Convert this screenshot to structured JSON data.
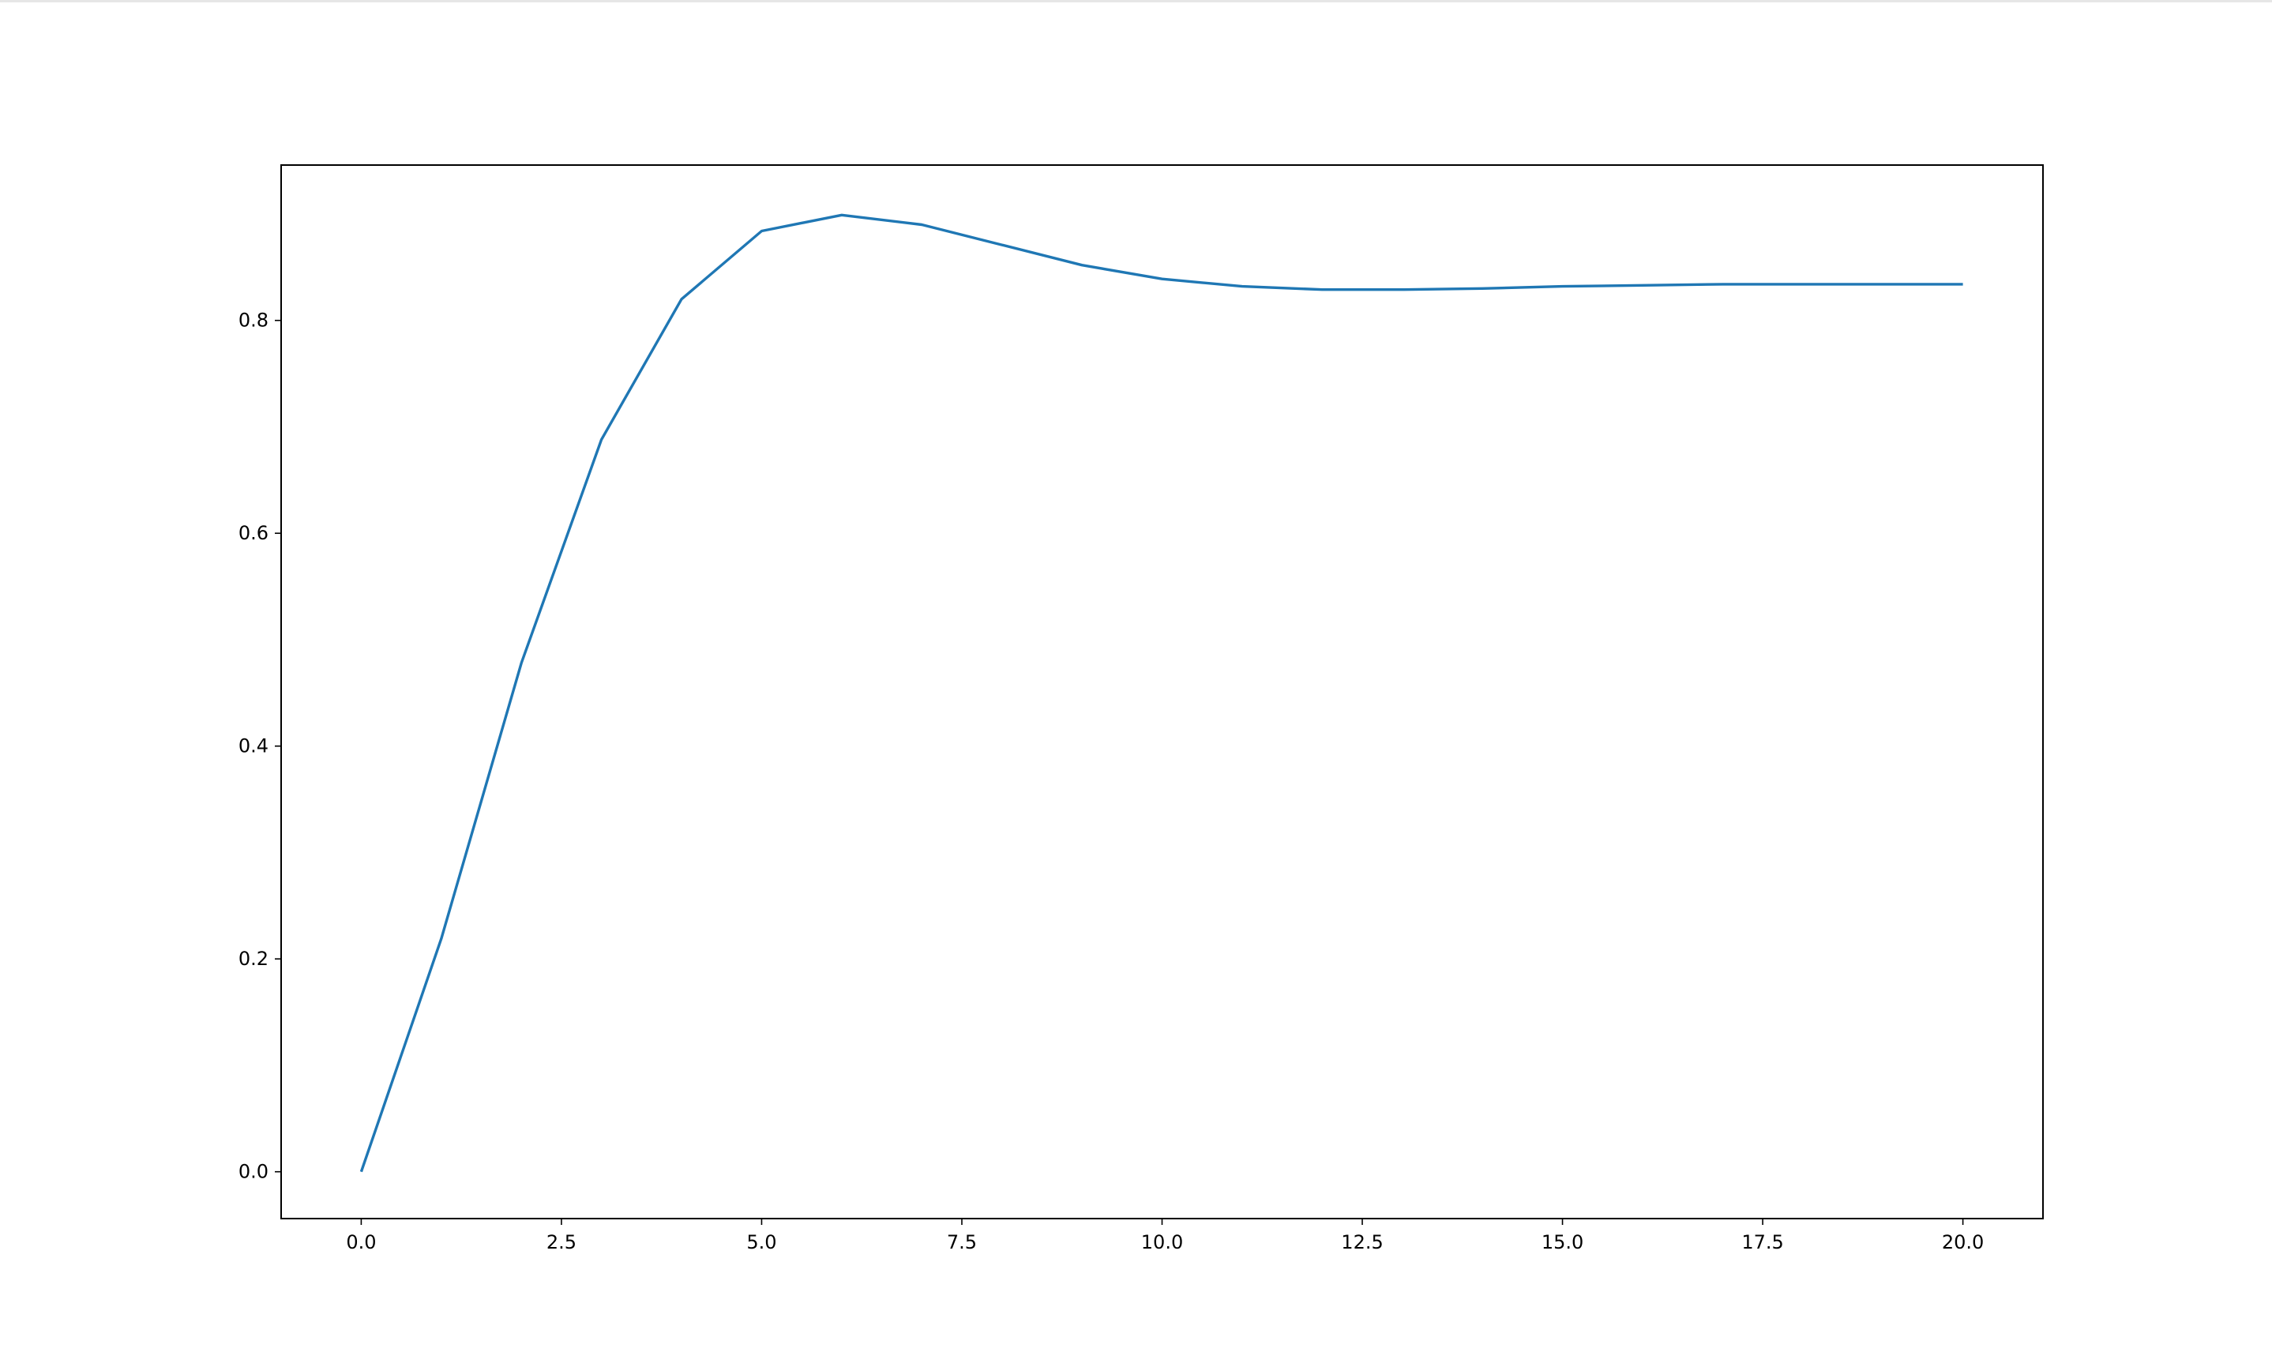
{
  "chart_data": {
    "type": "line",
    "title": "",
    "xlabel": "",
    "ylabel": "",
    "xlim": [
      -1.0,
      21.0
    ],
    "ylim": [
      -0.044,
      0.946
    ],
    "grid": false,
    "legend": "none",
    "x_ticks": [
      "0.0",
      "2.5",
      "5.0",
      "7.5",
      "10.0",
      "12.5",
      "15.0",
      "17.5",
      "20.0"
    ],
    "y_ticks": [
      "0.0",
      "0.2",
      "0.4",
      "0.6",
      "0.8"
    ],
    "series": [
      {
        "color": "#1f77b4",
        "x": [
          0,
          1,
          2,
          3,
          4,
          5,
          6,
          7,
          8,
          9,
          10,
          11,
          12,
          13,
          14,
          15,
          16,
          17,
          18,
          19,
          20
        ],
        "y": [
          0.0,
          0.219,
          0.478,
          0.688,
          0.82,
          0.884,
          0.899,
          0.89,
          0.871,
          0.852,
          0.839,
          0.832,
          0.829,
          0.829,
          0.83,
          0.832,
          0.833,
          0.834,
          0.834,
          0.834,
          0.834
        ]
      }
    ]
  }
}
